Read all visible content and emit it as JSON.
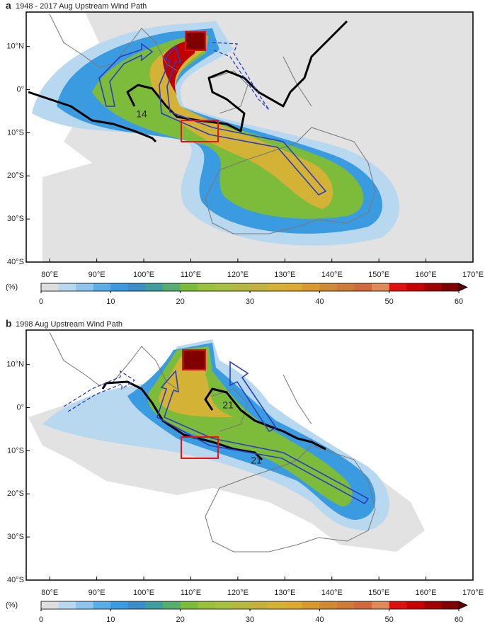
{
  "panels": [
    {
      "label": "a",
      "title": "1948 - 2017 Aug Upstream Wind Path",
      "contour_labels": [
        "14"
      ],
      "xlim": [
        75,
        170
      ],
      "ylim": [
        -40,
        18
      ],
      "xticks": [
        {
          "value": 80,
          "label": "80°E"
        },
        {
          "value": 90,
          "label": "90°E"
        },
        {
          "value": 100,
          "label": "100°E"
        },
        {
          "value": 110,
          "label": "110°E"
        },
        {
          "value": 120,
          "label": "120°E"
        },
        {
          "value": 130,
          "label": "130°E"
        },
        {
          "value": 140,
          "label": "140°E"
        },
        {
          "value": 150,
          "label": "150°E"
        },
        {
          "value": 160,
          "label": "160°E"
        },
        {
          "value": 170,
          "label": "170°E"
        }
      ],
      "yticks": [
        {
          "value": 10,
          "label": "10°N"
        },
        {
          "value": 0,
          "label": "0°"
        },
        {
          "value": -10,
          "label": "10°S"
        },
        {
          "value": -20,
          "label": "20°S"
        },
        {
          "value": -30,
          "label": "30°S"
        },
        {
          "value": -40,
          "label": "40°S"
        }
      ],
      "colorbar": {
        "unit": "(%)",
        "lim": [
          0,
          60
        ],
        "ticks": [
          0,
          10,
          20,
          30,
          40,
          50,
          60
        ],
        "colors": [
          "#dedede",
          "#b8d8f0",
          "#8ec5f0",
          "#5aaee8",
          "#3b9be0",
          "#3a8fc8",
          "#3f9e9e",
          "#55ae6e",
          "#7cbc3a",
          "#99c23a",
          "#a8c040",
          "#b5b840",
          "#c4b23c",
          "#d4b236",
          "#dcaa30",
          "#d89a2e",
          "#d08a34",
          "#d07a38",
          "#d06a3c",
          "#e08a5a",
          "#e01010",
          "#c80000",
          "#a00000",
          "#800000"
        ],
        "extend_color": "#600000"
      }
    },
    {
      "label": "b",
      "title": "1998 Aug Upstream Wind Path",
      "contour_labels": [
        "21",
        "21"
      ],
      "xlim": [
        75,
        170
      ],
      "ylim": [
        -40,
        18
      ],
      "xticks": [
        {
          "value": 80,
          "label": "80°E"
        },
        {
          "value": 90,
          "label": "90°E"
        },
        {
          "value": 100,
          "label": "100°E"
        },
        {
          "value": 110,
          "label": "110°E"
        },
        {
          "value": 120,
          "label": "120°E"
        },
        {
          "value": 130,
          "label": "130°E"
        },
        {
          "value": 140,
          "label": "140°E"
        },
        {
          "value": 150,
          "label": "150°E"
        },
        {
          "value": 160,
          "label": "160°E"
        },
        {
          "value": 170,
          "label": "170°E"
        }
      ],
      "yticks": [
        {
          "value": 10,
          "label": "10°N"
        },
        {
          "value": 0,
          "label": "0°"
        },
        {
          "value": -10,
          "label": "10°S"
        },
        {
          "value": -20,
          "label": "20°S"
        },
        {
          "value": -30,
          "label": "30°S"
        },
        {
          "value": -40,
          "label": "40°S"
        }
      ],
      "colorbar": {
        "unit": "(%)",
        "lim": [
          0,
          60
        ],
        "ticks": [
          0,
          10,
          20,
          30,
          40,
          50,
          60
        ],
        "colors": [
          "#dedede",
          "#b8d8f0",
          "#8ec5f0",
          "#5aaee8",
          "#3b9be0",
          "#3a8fc8",
          "#3f9e9e",
          "#55ae6e",
          "#7cbc3a",
          "#99c23a",
          "#a8c040",
          "#b5b840",
          "#c4b23c",
          "#d4b236",
          "#dcaa30",
          "#d89a2e",
          "#d08a34",
          "#d07a38",
          "#d06a3c",
          "#e08a5a",
          "#e01010",
          "#c80000",
          "#a00000",
          "#800000"
        ],
        "extend_color": "#600000"
      }
    }
  ]
}
